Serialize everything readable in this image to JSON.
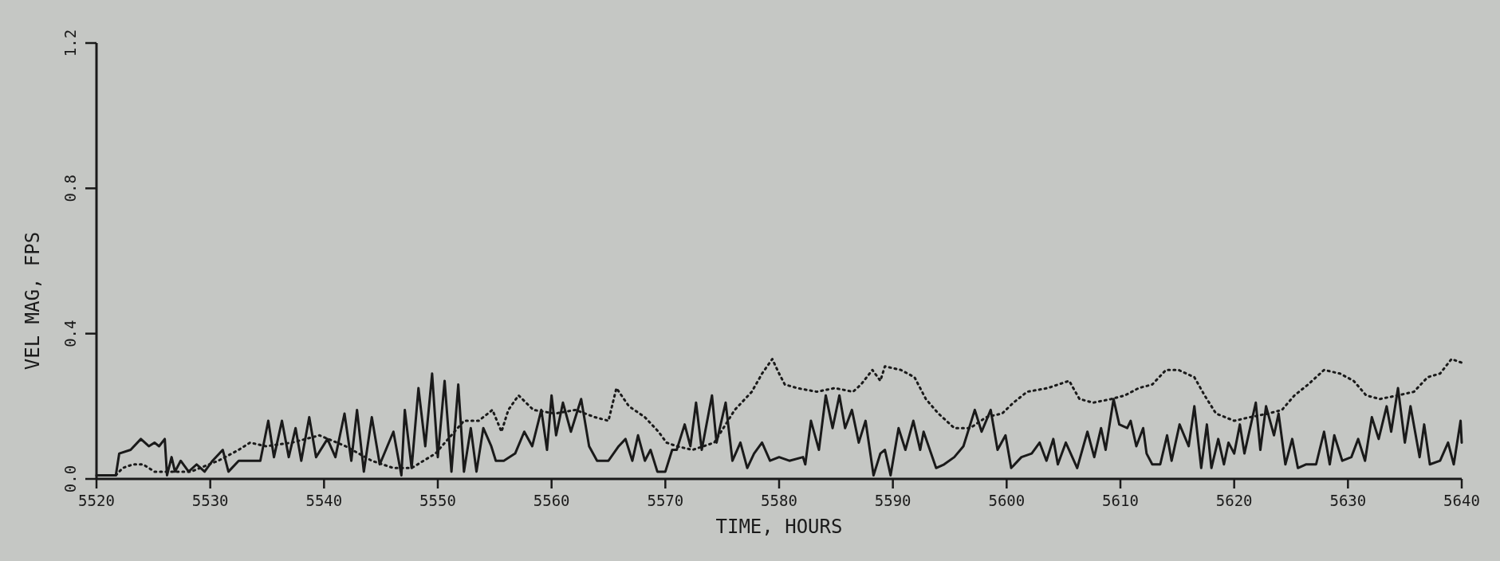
{
  "chart_data": {
    "type": "line",
    "xlabel": "TIME, HOURS",
    "ylabel": "VEL MAG, FPS",
    "xlim": [
      5520,
      5640
    ],
    "xticks": [
      5520,
      5530,
      5540,
      5550,
      5560,
      5570,
      5580,
      5590,
      5600,
      5610,
      5620,
      5630,
      5640
    ],
    "ylim": [
      0,
      1.2
    ],
    "yticks": [
      {
        "value": 0,
        "label": "0.0"
      },
      {
        "value": 0.4,
        "label": "0.4"
      },
      {
        "value": 0.8,
        "label": "0.8"
      },
      {
        "value": 1.2,
        "label": "1.2"
      }
    ],
    "grid": false,
    "series": [
      {
        "color": "#1a1a1a",
        "line_style": "solid",
        "x": [
          5520,
          5521.7,
          5522,
          5523,
          5523.9,
          5524.6,
          5525.1,
          5525.5,
          5526,
          5526.2,
          5526.6,
          5526.9,
          5527.4,
          5528.1,
          5528.8,
          5529.5,
          5530.2,
          5531.1,
          5531.6,
          5532.5,
          5533.5,
          5534.4,
          5535.1,
          5535.6,
          5536.3,
          5536.9,
          5537.5,
          5538,
          5538.7,
          5539.3,
          5540.3,
          5541,
          5541.8,
          5542.4,
          5542.9,
          5543.5,
          5544.2,
          5544.9,
          5546.1,
          5546.8,
          5547.1,
          5547.7,
          5548.3,
          5548.9,
          5549.5,
          5550,
          5550.6,
          5551.2,
          5551.8,
          5552.3,
          5552.9,
          5553.4,
          5554,
          5554.7,
          5555.1,
          5555.8,
          5556.8,
          5557.6,
          5558.3,
          5559.1,
          5559.6,
          5560,
          5560.4,
          5561,
          5561.7,
          5562.6,
          5563.3,
          5564,
          5565,
          5565.9,
          5566.5,
          5567.1,
          5567.6,
          5568.2,
          5568.7,
          5569.3,
          5570,
          5570.6,
          5571,
          5571.7,
          5572.2,
          5572.7,
          5573.2,
          5574.1,
          5574.5,
          5575.3,
          5575.9,
          5576.6,
          5577.2,
          5577.8,
          5578.5,
          5579.2,
          5580,
          5580.9,
          5582.1,
          5582.3,
          5582.8,
          5583.5,
          5584.1,
          5584.7,
          5585.3,
          5585.8,
          5586.4,
          5587,
          5587.6,
          5588.3,
          5588.9,
          5589.3,
          5589.8,
          5590.5,
          5591.1,
          5591.8,
          5592.4,
          5592.7,
          5593.8,
          5594.5,
          5595.4,
          5596.2,
          5597.2,
          5597.8,
          5598.6,
          5599.2,
          5599.9,
          5600.4,
          5601.3,
          5602.2,
          5602.9,
          5603.5,
          5604.1,
          5604.5,
          5605.2,
          5606.2,
          5607.1,
          5607.7,
          5608.3,
          5608.7,
          5609.4,
          5609.9,
          5610.6,
          5610.9,
          5611.4,
          5612,
          5612.3,
          5612.8,
          5613.5,
          5614.1,
          5614.5,
          5615.2,
          5616,
          5616.5,
          5617.1,
          5617.6,
          5618,
          5618.6,
          5619.1,
          5619.5,
          5620,
          5620.5,
          5620.9,
          5621.4,
          5621.9,
          5622.3,
          5622.8,
          5623.5,
          5623.9,
          5624.5,
          5625.1,
          5625.6,
          5626.3,
          5627.2,
          5627.9,
          5628.4,
          5628.8,
          5629.5,
          5630.3,
          5630.9,
          5631.5,
          5632.1,
          5632.7,
          5633.4,
          5633.8,
          5634.4,
          5635,
          5635.5,
          5636.3,
          5636.7,
          5637.2,
          5638.1,
          5638.8,
          5639.3,
          5639.9,
          5640
        ],
        "values": [
          0.01,
          0.01,
          0.07,
          0.08,
          0.11,
          0.09,
          0.1,
          0.09,
          0.11,
          0.01,
          0.06,
          0.02,
          0.05,
          0.02,
          0.04,
          0.02,
          0.05,
          0.08,
          0.02,
          0.05,
          0.05,
          0.05,
          0.16,
          0.06,
          0.16,
          0.06,
          0.14,
          0.05,
          0.17,
          0.06,
          0.11,
          0.06,
          0.18,
          0.05,
          0.19,
          0.02,
          0.17,
          0.04,
          0.13,
          0.01,
          0.19,
          0.03,
          0.25,
          0.09,
          0.29,
          0.06,
          0.27,
          0.02,
          0.26,
          0.02,
          0.14,
          0.02,
          0.14,
          0.09,
          0.05,
          0.05,
          0.07,
          0.13,
          0.09,
          0.19,
          0.08,
          0.23,
          0.12,
          0.21,
          0.13,
          0.22,
          0.09,
          0.05,
          0.05,
          0.09,
          0.11,
          0.05,
          0.12,
          0.05,
          0.08,
          0.02,
          0.02,
          0.08,
          0.08,
          0.15,
          0.09,
          0.21,
          0.08,
          0.23,
          0.1,
          0.21,
          0.05,
          0.1,
          0.03,
          0.07,
          0.1,
          0.05,
          0.06,
          0.05,
          0.06,
          0.04,
          0.16,
          0.08,
          0.23,
          0.14,
          0.23,
          0.14,
          0.19,
          0.1,
          0.16,
          0.01,
          0.07,
          0.08,
          0.01,
          0.14,
          0.08,
          0.16,
          0.08,
          0.13,
          0.03,
          0.04,
          0.06,
          0.09,
          0.19,
          0.13,
          0.19,
          0.08,
          0.12,
          0.03,
          0.06,
          0.07,
          0.1,
          0.05,
          0.11,
          0.04,
          0.1,
          0.03,
          0.13,
          0.06,
          0.14,
          0.08,
          0.22,
          0.15,
          0.14,
          0.16,
          0.09,
          0.14,
          0.07,
          0.04,
          0.04,
          0.12,
          0.05,
          0.15,
          0.09,
          0.2,
          0.03,
          0.15,
          0.03,
          0.11,
          0.04,
          0.1,
          0.07,
          0.15,
          0.07,
          0.14,
          0.21,
          0.08,
          0.2,
          0.12,
          0.18,
          0.04,
          0.11,
          0.03,
          0.04,
          0.04,
          0.13,
          0.04,
          0.12,
          0.05,
          0.06,
          0.11,
          0.05,
          0.17,
          0.11,
          0.2,
          0.13,
          0.25,
          0.1,
          0.2,
          0.06,
          0.15,
          0.04,
          0.05,
          0.1,
          0.04,
          0.16,
          0.1
        ]
      },
      {
        "color": "#1a1a1a",
        "line_style": "dotted",
        "x": [
          5521.7,
          5522.3,
          5523.2,
          5524.1,
          5525.1,
          5525.5,
          5528.3,
          5530.7,
          5532.5,
          5533.5,
          5534.9,
          5537.2,
          5539.6,
          5541.9,
          5544.2,
          5546.1,
          5547.7,
          5549.8,
          5552.3,
          5553.6,
          5554.8,
          5555.6,
          5556.2,
          5557.1,
          5558.4,
          5560.3,
          5562.1,
          5563.8,
          5565,
          5565.7,
          5566.8,
          5568.2,
          5569.4,
          5570.1,
          5571,
          5572.4,
          5574.3,
          5576.1,
          5577.6,
          5578.5,
          5579.4,
          5580,
          5580.5,
          5581.6,
          5583.3,
          5584.9,
          5586.5,
          5587.2,
          5588.2,
          5588.9,
          5589.3,
          5590.7,
          5591.9,
          5592.9,
          5594,
          5595.4,
          5596.8,
          5598.2,
          5599.6,
          5600.6,
          5601.8,
          5603.6,
          5605.5,
          5606.4,
          5607.6,
          5609.2,
          5610.4,
          5611.6,
          5612.8,
          5614,
          5615.1,
          5616.5,
          5617.4,
          5618.4,
          5620,
          5621.4,
          5623,
          5624.2,
          5625.3,
          5626.5,
          5627.9,
          5629.3,
          5630.5,
          5631.6,
          5632.8,
          5634.4,
          5635.8,
          5637,
          5638.1,
          5639.1,
          5640
        ],
        "values": [
          0.01,
          0.03,
          0.04,
          0.04,
          0.02,
          0.02,
          0.02,
          0.05,
          0.08,
          0.1,
          0.09,
          0.1,
          0.12,
          0.09,
          0.05,
          0.03,
          0.03,
          0.07,
          0.16,
          0.16,
          0.19,
          0.13,
          0.19,
          0.23,
          0.19,
          0.18,
          0.19,
          0.17,
          0.16,
          0.25,
          0.2,
          0.17,
          0.13,
          0.1,
          0.09,
          0.08,
          0.1,
          0.19,
          0.24,
          0.29,
          0.33,
          0.29,
          0.26,
          0.25,
          0.24,
          0.25,
          0.24,
          0.26,
          0.3,
          0.27,
          0.31,
          0.3,
          0.28,
          0.22,
          0.18,
          0.14,
          0.14,
          0.17,
          0.18,
          0.21,
          0.24,
          0.25,
          0.27,
          0.22,
          0.21,
          0.22,
          0.23,
          0.25,
          0.26,
          0.3,
          0.3,
          0.28,
          0.23,
          0.18,
          0.16,
          0.17,
          0.18,
          0.19,
          0.23,
          0.26,
          0.3,
          0.29,
          0.27,
          0.23,
          0.22,
          0.23,
          0.24,
          0.28,
          0.29,
          0.33,
          0.32
        ]
      }
    ]
  }
}
